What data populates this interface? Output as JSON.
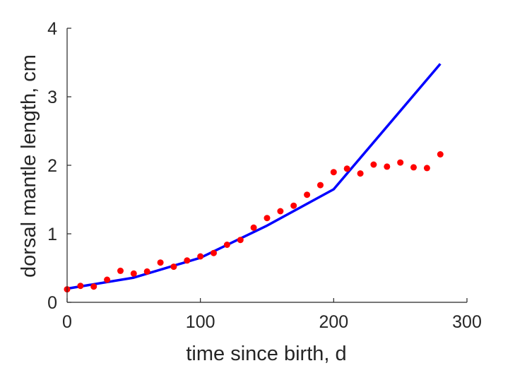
{
  "chart_data": {
    "type": "scatter",
    "xlabel": "time since birth, d",
    "ylabel": "dorsal mantle length, cm",
    "xlim": [
      0,
      300
    ],
    "ylim": [
      0,
      4
    ],
    "xticks": [
      0,
      100,
      200,
      300
    ],
    "yticks": [
      0,
      1,
      2,
      3,
      4
    ],
    "grid": false,
    "series": [
      {
        "kind": "line",
        "color": "#0000ff",
        "x": [
          0,
          50,
          100,
          150,
          200,
          280
        ],
        "y": [
          0.2,
          0.36,
          0.65,
          1.12,
          1.65,
          3.48
        ]
      },
      {
        "kind": "markers",
        "color": "#ff0000",
        "x": [
          0,
          10,
          20,
          30,
          40,
          50,
          60,
          70,
          80,
          90,
          100,
          110,
          120,
          130,
          140,
          150,
          160,
          170,
          180,
          190,
          200,
          210,
          220,
          230,
          240,
          250,
          260,
          270,
          280
        ],
        "y": [
          0.19,
          0.24,
          0.23,
          0.33,
          0.46,
          0.42,
          0.45,
          0.58,
          0.52,
          0.61,
          0.67,
          0.72,
          0.84,
          0.91,
          1.09,
          1.23,
          1.33,
          1.41,
          1.57,
          1.71,
          1.9,
          1.95,
          1.88,
          2.01,
          1.98,
          2.04,
          1.97,
          1.96,
          2.16
        ]
      }
    ]
  }
}
